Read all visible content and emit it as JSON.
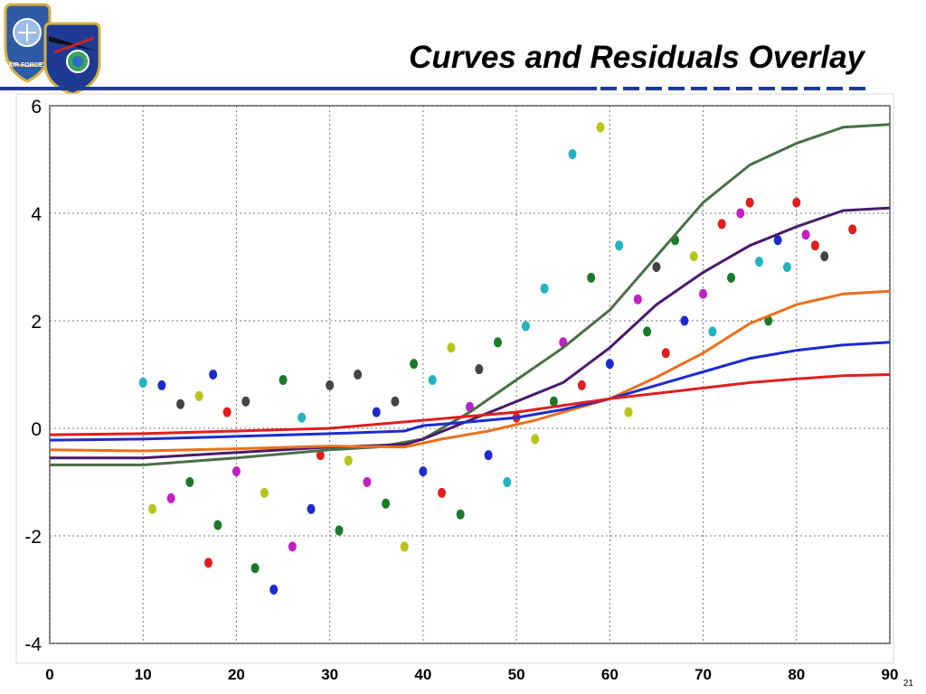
{
  "slide": {
    "title": "Curves and Residuals Overlay",
    "number": "21",
    "logo": {
      "name": "air-force-space-command-emblem",
      "text": "AIR FORCE"
    },
    "accent_color": "#1f3a93"
  },
  "chart_data": {
    "type": "scatter",
    "title": "",
    "xlabel": "",
    "ylabel": "",
    "xlim": [
      0,
      90
    ],
    "ylim": [
      -4,
      6
    ],
    "x_ticks": [
      "0",
      "10",
      "20",
      "30",
      "40",
      "50",
      "60",
      "70",
      "80",
      "90"
    ],
    "y_ticks": [
      "6",
      "4",
      "2",
      "0",
      "-2",
      "-4"
    ],
    "grid": true,
    "legend": "none",
    "lines": [
      {
        "color": "#4a7049",
        "points": [
          [
            0,
            -0.68
          ],
          [
            10,
            -0.68
          ],
          [
            20,
            -0.55
          ],
          [
            30,
            -0.4
          ],
          [
            35,
            -0.35
          ],
          [
            40,
            -0.2
          ],
          [
            45,
            0.3
          ],
          [
            50,
            0.9
          ],
          [
            55,
            1.5
          ],
          [
            60,
            2.2
          ],
          [
            65,
            3.2
          ],
          [
            70,
            4.2
          ],
          [
            75,
            4.9
          ],
          [
            80,
            5.3
          ],
          [
            85,
            5.6
          ],
          [
            90,
            5.65
          ]
        ]
      },
      {
        "color": "#4b1a6b",
        "points": [
          [
            0,
            -0.55
          ],
          [
            10,
            -0.55
          ],
          [
            20,
            -0.45
          ],
          [
            30,
            -0.35
          ],
          [
            38,
            -0.3
          ],
          [
            40,
            -0.2
          ],
          [
            45,
            0.15
          ],
          [
            50,
            0.5
          ],
          [
            55,
            0.85
          ],
          [
            60,
            1.5
          ],
          [
            65,
            2.3
          ],
          [
            70,
            2.9
          ],
          [
            75,
            3.4
          ],
          [
            80,
            3.75
          ],
          [
            85,
            4.05
          ],
          [
            90,
            4.1
          ]
        ]
      },
      {
        "color": "#ee6f1c",
        "points": [
          [
            0,
            -0.4
          ],
          [
            10,
            -0.42
          ],
          [
            20,
            -0.38
          ],
          [
            30,
            -0.33
          ],
          [
            38,
            -0.35
          ],
          [
            42,
            -0.2
          ],
          [
            47,
            -0.05
          ],
          [
            52,
            0.15
          ],
          [
            56,
            0.35
          ],
          [
            60,
            0.55
          ],
          [
            65,
            0.95
          ],
          [
            70,
            1.4
          ],
          [
            75,
            1.95
          ],
          [
            80,
            2.3
          ],
          [
            85,
            2.5
          ],
          [
            90,
            2.55
          ]
        ]
      },
      {
        "color": "#1d2bcc",
        "points": [
          [
            0,
            -0.22
          ],
          [
            10,
            -0.2
          ],
          [
            20,
            -0.15
          ],
          [
            30,
            -0.1
          ],
          [
            38,
            -0.05
          ],
          [
            40,
            0.05
          ],
          [
            45,
            0.12
          ],
          [
            50,
            0.2
          ],
          [
            55,
            0.35
          ],
          [
            60,
            0.55
          ],
          [
            65,
            0.8
          ],
          [
            70,
            1.05
          ],
          [
            75,
            1.3
          ],
          [
            80,
            1.45
          ],
          [
            85,
            1.55
          ],
          [
            90,
            1.6
          ]
        ]
      },
      {
        "color": "#e01e1e",
        "points": [
          [
            0,
            -0.12
          ],
          [
            10,
            -0.1
          ],
          [
            20,
            -0.05
          ],
          [
            30,
            0.0
          ],
          [
            40,
            0.15
          ],
          [
            50,
            0.3
          ],
          [
            60,
            0.55
          ],
          [
            70,
            0.75
          ],
          [
            75,
            0.85
          ],
          [
            80,
            0.92
          ],
          [
            85,
            0.98
          ],
          [
            90,
            1.0
          ]
        ]
      }
    ],
    "scatter_colors": [
      "#e01e1e",
      "#1d2bcc",
      "#1b7a2a",
      "#b8c41a",
      "#c41fc4",
      "#23b3c0",
      "#444444"
    ],
    "points": [
      {
        "x": 10,
        "y": 0.85,
        "c": 5
      },
      {
        "x": 11,
        "y": -1.5,
        "c": 3
      },
      {
        "x": 12,
        "y": 0.8,
        "c": 1
      },
      {
        "x": 13,
        "y": -1.3,
        "c": 4
      },
      {
        "x": 14,
        "y": 0.45,
        "c": 6
      },
      {
        "x": 15,
        "y": -1.0,
        "c": 2
      },
      {
        "x": 16,
        "y": 0.6,
        "c": 3
      },
      {
        "x": 17,
        "y": -2.5,
        "c": 0
      },
      {
        "x": 17.5,
        "y": 1.0,
        "c": 1
      },
      {
        "x": 18,
        "y": -1.8,
        "c": 2
      },
      {
        "x": 19,
        "y": 0.3,
        "c": 0
      },
      {
        "x": 20,
        "y": -0.8,
        "c": 4
      },
      {
        "x": 21,
        "y": 0.5,
        "c": 6
      },
      {
        "x": 22,
        "y": -2.6,
        "c": 2
      },
      {
        "x": 23,
        "y": -1.2,
        "c": 3
      },
      {
        "x": 24,
        "y": -3.0,
        "c": 1
      },
      {
        "x": 25,
        "y": 0.9,
        "c": 2
      },
      {
        "x": 26,
        "y": -2.2,
        "c": 4
      },
      {
        "x": 27,
        "y": 0.2,
        "c": 5
      },
      {
        "x": 28,
        "y": -1.5,
        "c": 1
      },
      {
        "x": 29,
        "y": -0.5,
        "c": 0
      },
      {
        "x": 30,
        "y": 0.8,
        "c": 6
      },
      {
        "x": 31,
        "y": -1.9,
        "c": 2
      },
      {
        "x": 32,
        "y": -0.6,
        "c": 3
      },
      {
        "x": 33,
        "y": 1.0,
        "c": 6
      },
      {
        "x": 34,
        "y": -1.0,
        "c": 4
      },
      {
        "x": 35,
        "y": 0.3,
        "c": 1
      },
      {
        "x": 36,
        "y": -1.4,
        "c": 2
      },
      {
        "x": 37,
        "y": 0.5,
        "c": 6
      },
      {
        "x": 38,
        "y": -2.2,
        "c": 3
      },
      {
        "x": 39,
        "y": 1.2,
        "c": 2
      },
      {
        "x": 40,
        "y": -0.8,
        "c": 1
      },
      {
        "x": 41,
        "y": 0.9,
        "c": 5
      },
      {
        "x": 42,
        "y": -1.2,
        "c": 0
      },
      {
        "x": 43,
        "y": 1.5,
        "c": 3
      },
      {
        "x": 44,
        "y": -1.6,
        "c": 2
      },
      {
        "x": 45,
        "y": 0.4,
        "c": 4
      },
      {
        "x": 46,
        "y": 1.1,
        "c": 6
      },
      {
        "x": 47,
        "y": -0.5,
        "c": 1
      },
      {
        "x": 48,
        "y": 1.6,
        "c": 2
      },
      {
        "x": 49,
        "y": -1.0,
        "c": 5
      },
      {
        "x": 50,
        "y": 0.2,
        "c": 0
      },
      {
        "x": 51,
        "y": 1.9,
        "c": 5
      },
      {
        "x": 52,
        "y": -0.2,
        "c": 3
      },
      {
        "x": 53,
        "y": 2.6,
        "c": 5
      },
      {
        "x": 54,
        "y": 0.5,
        "c": 2
      },
      {
        "x": 55,
        "y": 1.6,
        "c": 4
      },
      {
        "x": 56,
        "y": 5.1,
        "c": 5
      },
      {
        "x": 57,
        "y": 0.8,
        "c": 0
      },
      {
        "x": 58,
        "y": 2.8,
        "c": 2
      },
      {
        "x": 59,
        "y": 5.6,
        "c": 3
      },
      {
        "x": 60,
        "y": 1.2,
        "c": 1
      },
      {
        "x": 61,
        "y": 3.4,
        "c": 5
      },
      {
        "x": 62,
        "y": 0.3,
        "c": 3
      },
      {
        "x": 63,
        "y": 2.4,
        "c": 4
      },
      {
        "x": 64,
        "y": 1.8,
        "c": 2
      },
      {
        "x": 65,
        "y": 3.0,
        "c": 6
      },
      {
        "x": 66,
        "y": 1.4,
        "c": 0
      },
      {
        "x": 67,
        "y": 3.5,
        "c": 2
      },
      {
        "x": 68,
        "y": 2.0,
        "c": 1
      },
      {
        "x": 69,
        "y": 3.2,
        "c": 3
      },
      {
        "x": 70,
        "y": 2.5,
        "c": 4
      },
      {
        "x": 71,
        "y": 1.8,
        "c": 5
      },
      {
        "x": 72,
        "y": 3.8,
        "c": 0
      },
      {
        "x": 73,
        "y": 2.8,
        "c": 2
      },
      {
        "x": 74,
        "y": 4.0,
        "c": 4
      },
      {
        "x": 75,
        "y": 4.2,
        "c": 0
      },
      {
        "x": 76,
        "y": 3.1,
        "c": 5
      },
      {
        "x": 77,
        "y": 2.0,
        "c": 2
      },
      {
        "x": 78,
        "y": 3.5,
        "c": 1
      },
      {
        "x": 79,
        "y": 3.0,
        "c": 5
      },
      {
        "x": 80,
        "y": 4.2,
        "c": 0
      },
      {
        "x": 81,
        "y": 3.6,
        "c": 4
      },
      {
        "x": 82,
        "y": 3.4,
        "c": 0
      },
      {
        "x": 83,
        "y": 3.2,
        "c": 6
      },
      {
        "x": 86,
        "y": 3.7,
        "c": 0
      }
    ]
  }
}
